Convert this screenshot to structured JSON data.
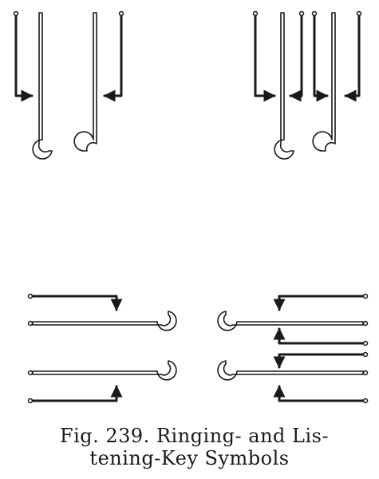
{
  "figure": {
    "caption_line_1": "Fig. 239.   Ringing- and Lis-",
    "caption_line_2": "tening-Key Symbols"
  },
  "colors": {
    "ink": "#1a1a1a",
    "paper": "#ffffff"
  }
}
